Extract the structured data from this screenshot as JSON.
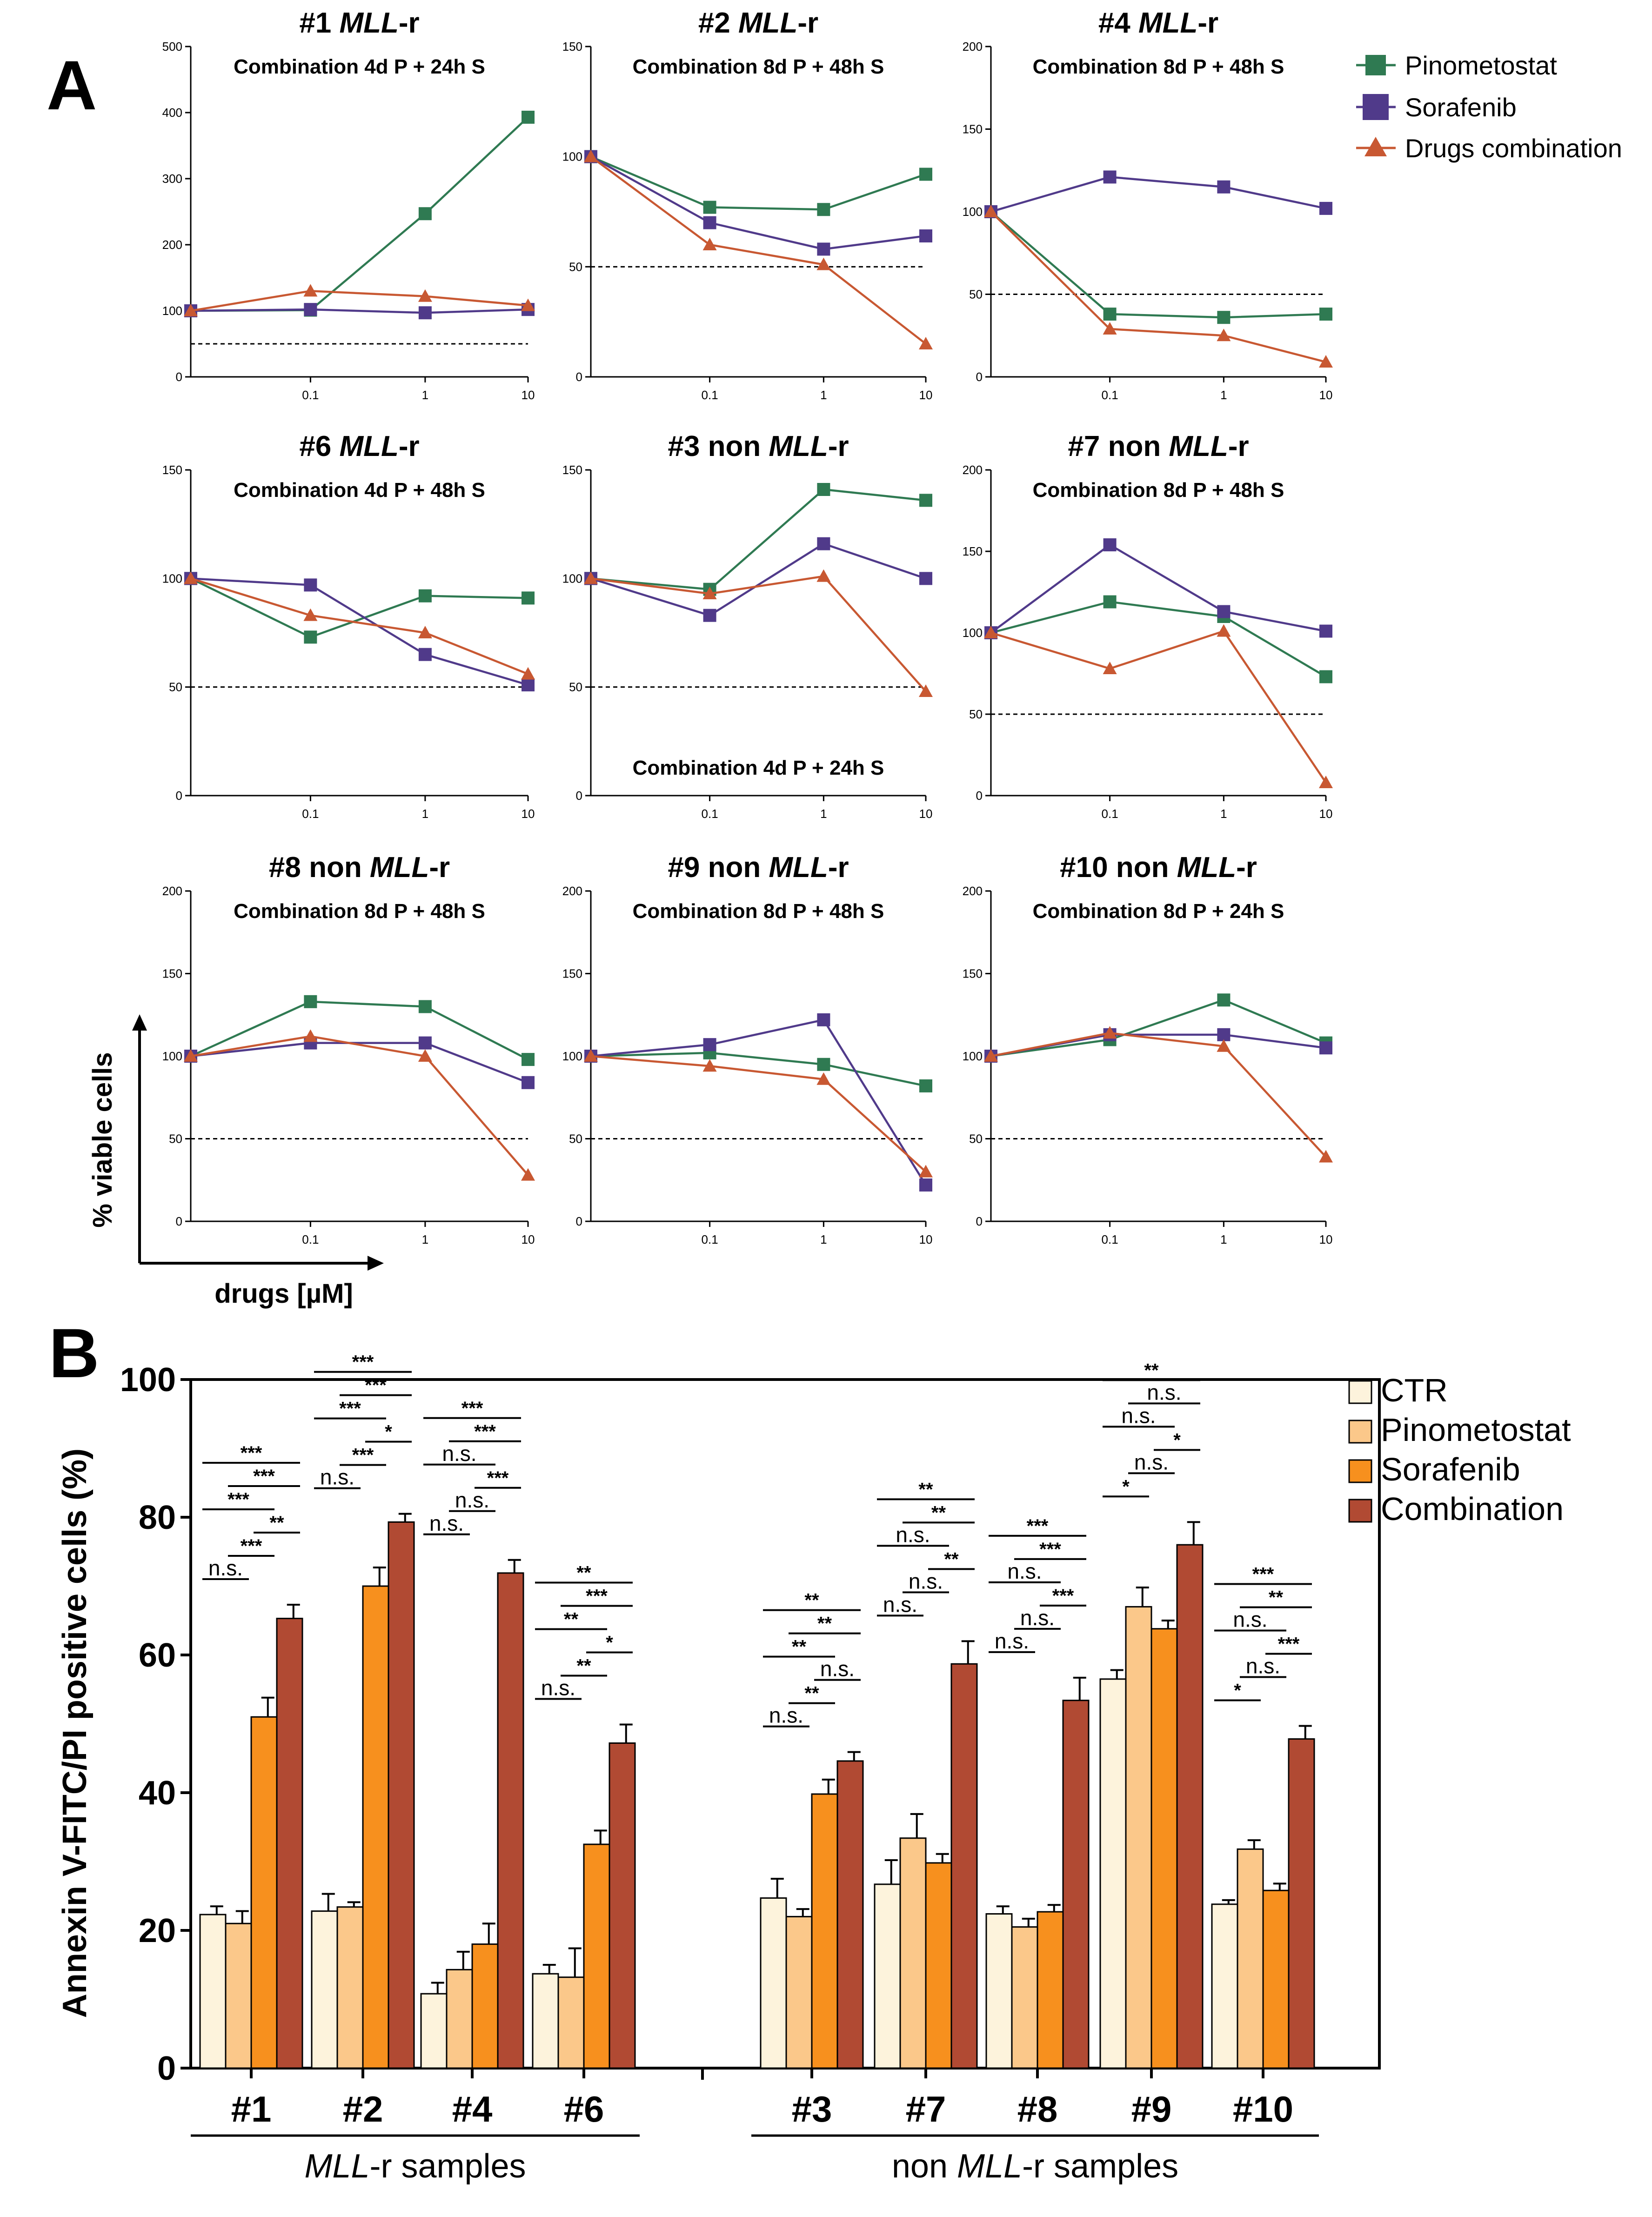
{
  "panel_labels": {
    "a": "A",
    "b": "B"
  },
  "panel_a": {
    "ylabel": "% viable cells",
    "xlabel": "drugs [µM]",
    "legend": [
      {
        "name": "Pinometostat",
        "marker": "square",
        "color": "#2f7a52"
      },
      {
        "name": "Sorafenib",
        "marker": "square",
        "color": "#503a8a"
      },
      {
        "name": "Drugs combination",
        "marker": "triangle",
        "color": "#c85832"
      }
    ]
  },
  "chart_data": [
    {
      "type": "line",
      "panel": "A1",
      "title_prefix": "#1 ",
      "title_italic": "MLL",
      "title_suffix": "-r",
      "subtitle": "Combination 4d P + 24h S",
      "x": [
        "",
        "0.1",
        "1",
        "10"
      ],
      "ylim": [
        0,
        500
      ],
      "yticks": [
        "0",
        "100",
        "200",
        "300",
        "400",
        "500"
      ],
      "reference_line": 50,
      "series": [
        {
          "name": "Pinometostat",
          "values": [
            100,
            101,
            247,
            393
          ]
        },
        {
          "name": "Sorafenib",
          "values": [
            100,
            102,
            97,
            102
          ]
        },
        {
          "name": "Drugs combination",
          "values": [
            100,
            130,
            122,
            108
          ]
        }
      ]
    },
    {
      "type": "line",
      "panel": "A2",
      "title_prefix": "#2 ",
      "title_italic": "MLL",
      "title_suffix": "-r",
      "subtitle": "Combination 8d P + 48h S",
      "x": [
        "",
        "0.1",
        "1",
        "10"
      ],
      "ylim": [
        0,
        150
      ],
      "yticks": [
        "0",
        "50",
        "100",
        "150"
      ],
      "reference_line": 50,
      "series": [
        {
          "name": "Pinometostat",
          "values": [
            100,
            77,
            76,
            92
          ]
        },
        {
          "name": "Sorafenib",
          "values": [
            100,
            70,
            58,
            64
          ]
        },
        {
          "name": "Drugs combination",
          "values": [
            100,
            60,
            51,
            15
          ]
        }
      ]
    },
    {
      "type": "line",
      "panel": "A3",
      "title_prefix": "#4 ",
      "title_italic": "MLL",
      "title_suffix": "-r",
      "subtitle": "Combination 8d P + 48h S",
      "x": [
        "",
        "0.1",
        "1",
        "10"
      ],
      "ylim": [
        0,
        200
      ],
      "yticks": [
        "0",
        "50",
        "100",
        "150",
        "200"
      ],
      "reference_line": 50,
      "series": [
        {
          "name": "Pinometostat",
          "values": [
            100,
            38,
            36,
            38
          ]
        },
        {
          "name": "Sorafenib",
          "values": [
            100,
            121,
            115,
            102
          ]
        },
        {
          "name": "Drugs combination",
          "values": [
            100,
            29,
            25,
            9
          ]
        }
      ]
    },
    {
      "type": "line",
      "panel": "A4",
      "title_prefix": "#6 ",
      "title_italic": "MLL",
      "title_suffix": "-r",
      "subtitle": "Combination 4d P + 48h S",
      "x": [
        "",
        "0.1",
        "1",
        "10"
      ],
      "ylim": [
        0,
        150
      ],
      "yticks": [
        "0",
        "50",
        "100",
        "150"
      ],
      "reference_line": 50,
      "series": [
        {
          "name": "Pinometostat",
          "values": [
            100,
            73,
            92,
            91
          ]
        },
        {
          "name": "Sorafenib",
          "values": [
            100,
            97,
            65,
            51
          ]
        },
        {
          "name": "Drugs combination",
          "values": [
            100,
            83,
            75,
            56
          ]
        }
      ]
    },
    {
      "type": "line",
      "panel": "A5",
      "title_prefix": "#3 non ",
      "title_italic": "MLL",
      "title_suffix": "-r",
      "subtitle": "Combination 4d P + 24h S",
      "subtitle_position": "bottom",
      "x": [
        "",
        "0.1",
        "1",
        "10"
      ],
      "ylim": [
        0,
        150
      ],
      "yticks": [
        "0",
        "50",
        "100",
        "150"
      ],
      "reference_line": 50,
      "series": [
        {
          "name": "Pinometostat",
          "values": [
            100,
            95,
            141,
            136
          ]
        },
        {
          "name": "Sorafenib",
          "values": [
            100,
            83,
            116,
            100
          ]
        },
        {
          "name": "Drugs combination",
          "values": [
            100,
            93,
            101,
            48
          ]
        }
      ]
    },
    {
      "type": "line",
      "panel": "A6",
      "title_prefix": "#7 non ",
      "title_italic": "MLL",
      "title_suffix": "-r",
      "subtitle": "Combination 8d P + 48h S",
      "x": [
        "",
        "0.1",
        "1",
        "10"
      ],
      "ylim": [
        0,
        200
      ],
      "yticks": [
        "0",
        "50",
        "100",
        "150",
        "200"
      ],
      "reference_line": 50,
      "series": [
        {
          "name": "Pinometostat",
          "values": [
            100,
            119,
            110,
            73
          ]
        },
        {
          "name": "Sorafenib",
          "values": [
            100,
            154,
            113,
            101
          ]
        },
        {
          "name": "Drugs combination",
          "values": [
            100,
            78,
            101,
            8
          ]
        }
      ]
    },
    {
      "type": "line",
      "panel": "A7",
      "title_prefix": "#8 non ",
      "title_italic": "MLL",
      "title_suffix": "-r",
      "subtitle": "Combination 8d P + 48h S",
      "x": [
        "",
        "0.1",
        "1",
        "10"
      ],
      "ylim": [
        0,
        200
      ],
      "yticks": [
        "0",
        "50",
        "100",
        "150",
        "200"
      ],
      "reference_line": 50,
      "series": [
        {
          "name": "Pinometostat",
          "values": [
            100,
            133,
            130,
            98
          ]
        },
        {
          "name": "Sorafenib",
          "values": [
            100,
            108,
            108,
            84
          ]
        },
        {
          "name": "Drugs combination",
          "values": [
            100,
            112,
            100,
            28
          ]
        }
      ]
    },
    {
      "type": "line",
      "panel": "A8",
      "title_prefix": "#9 non ",
      "title_italic": "MLL",
      "title_suffix": "-r",
      "subtitle": "Combination 8d P + 48h S",
      "x": [
        "",
        "0.1",
        "1",
        "10"
      ],
      "ylim": [
        0,
        200
      ],
      "yticks": [
        "0",
        "50",
        "100",
        "150",
        "200"
      ],
      "reference_line": 50,
      "series": [
        {
          "name": "Pinometostat",
          "values": [
            100,
            102,
            95,
            82
          ]
        },
        {
          "name": "Sorafenib",
          "values": [
            100,
            107,
            122,
            22
          ]
        },
        {
          "name": "Drugs combination",
          "values": [
            100,
            94,
            86,
            30
          ]
        }
      ]
    },
    {
      "type": "line",
      "panel": "A9",
      "title_prefix": "#10 non ",
      "title_italic": "MLL",
      "title_suffix": "-r",
      "subtitle": "Combination 8d P + 24h S",
      "x": [
        "",
        "0.1",
        "1",
        "10"
      ],
      "ylim": [
        0,
        200
      ],
      "yticks": [
        "0",
        "50",
        "100",
        "150",
        "200"
      ],
      "reference_line": 50,
      "series": [
        {
          "name": "Pinometostat",
          "values": [
            100,
            110,
            134,
            108
          ]
        },
        {
          "name": "Sorafenib",
          "values": [
            100,
            113,
            113,
            105
          ]
        },
        {
          "name": "Drugs combination",
          "values": [
            100,
            114,
            106,
            39
          ]
        }
      ]
    },
    {
      "type": "bar",
      "panel": "B",
      "ylabel": "Annexin V-FITC/PI positive cells (%)",
      "ylim": [
        0,
        100
      ],
      "yticks": [
        "0",
        "20",
        "40",
        "60",
        "80",
        "100"
      ],
      "legend": [
        "CTR",
        "Pinometostat",
        "Sorafenib",
        "Combination"
      ],
      "legend_colors": [
        "#fdf3dc",
        "#fbc88a",
        "#f7901e",
        "#b14a33"
      ],
      "groups": [
        {
          "label": "#1",
          "values": [
            22.3,
            21.0,
            51.0,
            65.3
          ],
          "errors": [
            1.2,
            1.8,
            2.8,
            2.0
          ],
          "sig": [
            [
              "n.s.",
              0,
              1
            ],
            [
              "***",
              0,
              2
            ],
            [
              "***",
              1,
              2
            ],
            [
              "***",
              1,
              3
            ],
            [
              "**",
              2,
              3
            ],
            [
              "***",
              0,
              3
            ]
          ]
        },
        {
          "label": "#2",
          "values": [
            22.8,
            23.4,
            70.0,
            79.3
          ],
          "errors": [
            2.5,
            0.7,
            2.7,
            1.2
          ],
          "sig": [
            [
              "n.s.",
              0,
              1
            ],
            [
              "***",
              0,
              2
            ],
            [
              "***",
              1,
              2
            ],
            [
              "*",
              2,
              3
            ],
            [
              "***",
              1,
              3
            ],
            [
              "***",
              0,
              3
            ]
          ]
        },
        {
          "label": "#4",
          "values": [
            10.8,
            14.3,
            18.0,
            71.9
          ],
          "errors": [
            1.6,
            2.6,
            3.0,
            1.9
          ],
          "sig": [
            [
              "n.s.",
              0,
              1
            ],
            [
              "n.s.",
              0,
              2
            ],
            [
              "n.s.",
              1,
              2
            ],
            [
              "***",
              2,
              3
            ],
            [
              "***",
              1,
              3
            ],
            [
              "***",
              0,
              3
            ]
          ]
        },
        {
          "label": "#6",
          "values": [
            13.7,
            13.2,
            32.5,
            47.2
          ],
          "errors": [
            1.3,
            4.2,
            2.0,
            2.7
          ],
          "sig": [
            [
              "n.s.",
              0,
              1
            ],
            [
              "**",
              0,
              2
            ],
            [
              "**",
              1,
              2
            ],
            [
              "*",
              2,
              3
            ],
            [
              "***",
              1,
              3
            ],
            [
              "**",
              0,
              3
            ]
          ]
        },
        {
          "label": "#3",
          "values": [
            24.7,
            22.0,
            39.8,
            44.6
          ],
          "errors": [
            2.8,
            1.1,
            2.1,
            1.3
          ],
          "sig": [
            [
              "n.s.",
              0,
              1
            ],
            [
              "**",
              0,
              2
            ],
            [
              "**",
              1,
              2
            ],
            [
              "n.s.",
              2,
              3
            ],
            [
              "**",
              1,
              3
            ],
            [
              "**",
              0,
              3
            ]
          ]
        },
        {
          "label": "#7",
          "values": [
            26.7,
            33.4,
            29.8,
            58.7
          ],
          "errors": [
            3.5,
            3.5,
            1.3,
            3.3
          ],
          "sig": [
            [
              "n.s.",
              0,
              1
            ],
            [
              "n.s.",
              0,
              2
            ],
            [
              "n.s.",
              1,
              2
            ],
            [
              "**",
              2,
              3
            ],
            [
              "**",
              1,
              3
            ],
            [
              "**",
              0,
              3
            ]
          ]
        },
        {
          "label": "#8",
          "values": [
            22.4,
            20.5,
            22.7,
            53.4
          ],
          "errors": [
            1.1,
            1.2,
            1.0,
            3.3
          ],
          "sig": [
            [
              "n.s.",
              0,
              1
            ],
            [
              "n.s.",
              0,
              2
            ],
            [
              "n.s.",
              1,
              2
            ],
            [
              "***",
              2,
              3
            ],
            [
              "***",
              1,
              3
            ],
            [
              "***",
              0,
              3
            ]
          ]
        },
        {
          "label": "#9",
          "values": [
            56.5,
            67.0,
            63.8,
            76.0
          ],
          "errors": [
            1.3,
            2.8,
            1.2,
            3.3
          ],
          "sig": [
            [
              "*",
              0,
              1
            ],
            [
              "n.s.",
              0,
              2
            ],
            [
              "n.s.",
              1,
              2
            ],
            [
              "*",
              2,
              3
            ],
            [
              "n.s.",
              1,
              3
            ],
            [
              "**",
              0,
              3
            ]
          ]
        },
        {
          "label": "#10",
          "values": [
            23.8,
            31.8,
            25.8,
            47.8
          ],
          "errors": [
            0.6,
            1.3,
            1.0,
            1.9
          ],
          "sig": [
            [
              "*",
              0,
              1
            ],
            [
              "n.s.",
              0,
              2
            ],
            [
              "n.s.",
              1,
              2
            ],
            [
              "***",
              2,
              3
            ],
            [
              "**",
              1,
              3
            ],
            [
              "***",
              0,
              3
            ]
          ]
        }
      ],
      "sample_groups": [
        {
          "label_italic": "MLL",
          "label_rest": "-r samples",
          "label_prefix": "",
          "members": [
            0,
            3
          ]
        },
        {
          "label_prefix": "non ",
          "label_italic": "MLL",
          "label_rest": "-r samples",
          "members": [
            4,
            8
          ]
        }
      ]
    }
  ]
}
